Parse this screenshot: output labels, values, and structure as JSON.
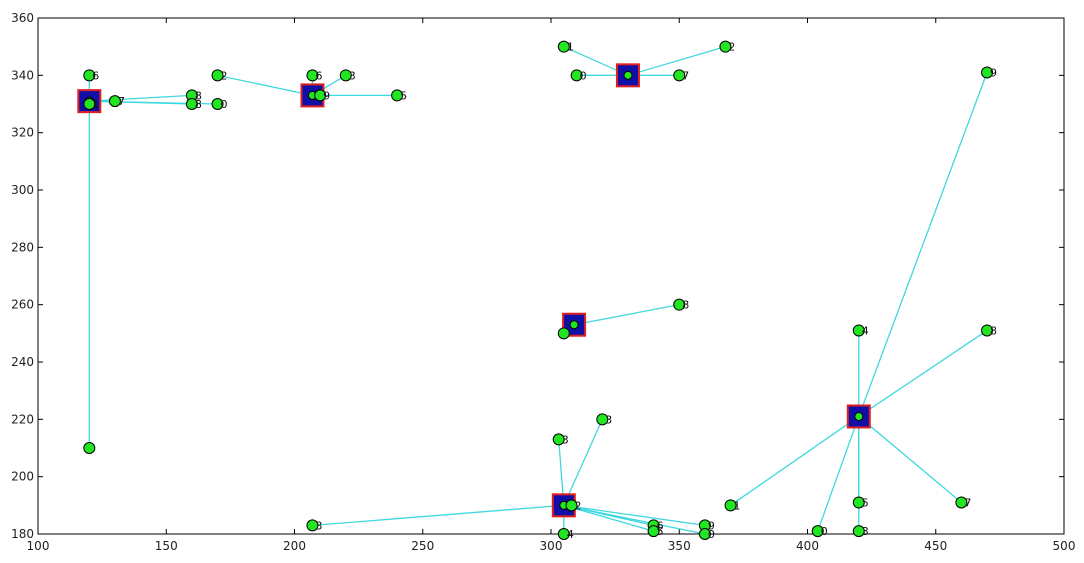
{
  "chart_data": {
    "type": "scatter",
    "title": "",
    "xlabel": "",
    "ylabel": "",
    "xlim": [
      100,
      500
    ],
    "ylim": [
      180,
      360
    ],
    "grid": false,
    "xticks": [
      100,
      150,
      200,
      250,
      300,
      350,
      400,
      450,
      500
    ],
    "yticks": [
      180,
      200,
      220,
      240,
      260,
      280,
      300,
      320,
      340,
      360
    ],
    "colors": {
      "edge": "#40d8e0",
      "node": "#22e622",
      "node_outline": "#000000",
      "head_fill": "#1010a8",
      "head_outline": "#e02020"
    },
    "clusters": [
      {
        "head": {
          "x": 120,
          "y": 331
        },
        "members": [
          {
            "x": 120,
            "y": 340,
            "label": "6"
          },
          {
            "x": 120,
            "y": 330,
            "label": "1"
          },
          {
            "x": 130,
            "y": 331,
            "label": "7"
          },
          {
            "x": 160,
            "y": 333,
            "label": "8"
          },
          {
            "x": 160,
            "y": 330,
            "label": "8"
          },
          {
            "x": 170,
            "y": 330,
            "label": "0"
          },
          {
            "x": 120,
            "y": 210,
            "label": ""
          }
        ]
      },
      {
        "head": {
          "x": 207,
          "y": 333
        },
        "members": [
          {
            "x": 170,
            "y": 340,
            "label": "2"
          },
          {
            "x": 207,
            "y": 340,
            "label": "6"
          },
          {
            "x": 220,
            "y": 340,
            "label": "3"
          },
          {
            "x": 240,
            "y": 333,
            "label": "5"
          },
          {
            "x": 210,
            "y": 333,
            "label": "9"
          }
        ]
      },
      {
        "head": {
          "x": 330,
          "y": 340
        },
        "members": [
          {
            "x": 305,
            "y": 350,
            "label": "1"
          },
          {
            "x": 368,
            "y": 350,
            "label": "2"
          },
          {
            "x": 310,
            "y": 340,
            "label": "0"
          },
          {
            "x": 350,
            "y": 340,
            "label": "7"
          }
        ]
      },
      {
        "head": {
          "x": 309,
          "y": 253
        },
        "members": [
          {
            "x": 350,
            "y": 260,
            "label": "8"
          },
          {
            "x": 305,
            "y": 250,
            "label": ""
          }
        ]
      },
      {
        "head": {
          "x": 305,
          "y": 190
        },
        "members": [
          {
            "x": 207,
            "y": 183,
            "label": "3"
          },
          {
            "x": 303,
            "y": 213,
            "label": "3"
          },
          {
            "x": 320,
            "y": 220,
            "label": "3"
          },
          {
            "x": 305,
            "y": 180,
            "label": "4"
          },
          {
            "x": 340,
            "y": 183,
            "label": "6"
          },
          {
            "x": 340,
            "y": 181,
            "label": "5"
          },
          {
            "x": 360,
            "y": 183,
            "label": "9"
          },
          {
            "x": 360,
            "y": 180,
            "label": "0"
          },
          {
            "x": 308,
            "y": 190,
            "label": "2"
          }
        ]
      },
      {
        "head": {
          "x": 420,
          "y": 221
        },
        "members": [
          {
            "x": 420,
            "y": 251,
            "label": "4"
          },
          {
            "x": 470,
            "y": 341,
            "label": "9"
          },
          {
            "x": 470,
            "y": 251,
            "label": "8"
          },
          {
            "x": 370,
            "y": 190,
            "label": "1"
          },
          {
            "x": 404,
            "y": 181,
            "label": "0"
          },
          {
            "x": 420,
            "y": 191,
            "label": "5"
          },
          {
            "x": 420,
            "y": 181,
            "label": "3"
          },
          {
            "x": 460,
            "y": 191,
            "label": "7"
          }
        ]
      }
    ]
  }
}
